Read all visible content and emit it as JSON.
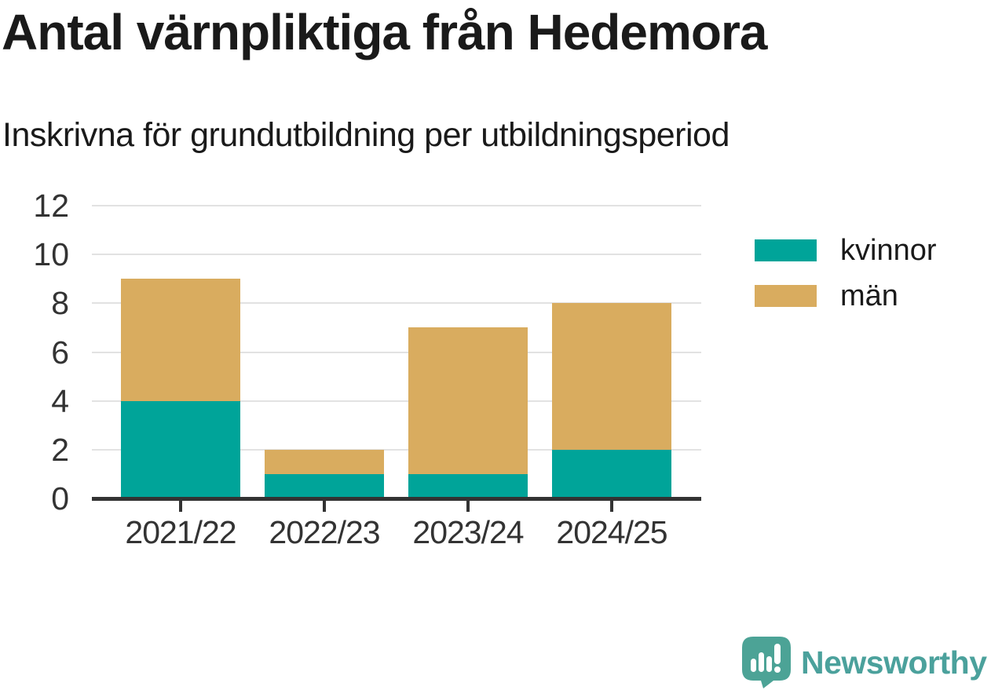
{
  "chart_data": {
    "type": "bar",
    "stacked": true,
    "title": "Antal värnpliktiga från Hedemora",
    "subtitle": "Inskrivna för grundutbildning per utbildningsperiod",
    "categories": [
      "2021/22",
      "2022/23",
      "2023/24",
      "2024/25"
    ],
    "series": [
      {
        "name": "kvinnor",
        "color": "#00a499",
        "values": [
          4,
          1,
          1,
          2
        ]
      },
      {
        "name": "män",
        "color": "#d9ac5f",
        "values": [
          5,
          1,
          6,
          6
        ]
      }
    ],
    "totals": [
      9,
      2,
      7,
      8
    ],
    "xlabel": "",
    "ylabel": "",
    "ylim": [
      0,
      12
    ],
    "yticks": [
      0,
      2,
      4,
      6,
      8,
      10,
      12
    ],
    "grid": true,
    "legend_position": "right"
  },
  "colors": {
    "axis": "#333333",
    "axis_text": "#333333",
    "gridline": "#e2e2e2",
    "title_text": "#1a1a1a"
  },
  "branding": {
    "logo_text": "Newsworthy",
    "logo_text_color": "#4ba19c",
    "icon_color": "#4ca396",
    "icon_name": "bar-chart-speech-bubble-icon"
  }
}
